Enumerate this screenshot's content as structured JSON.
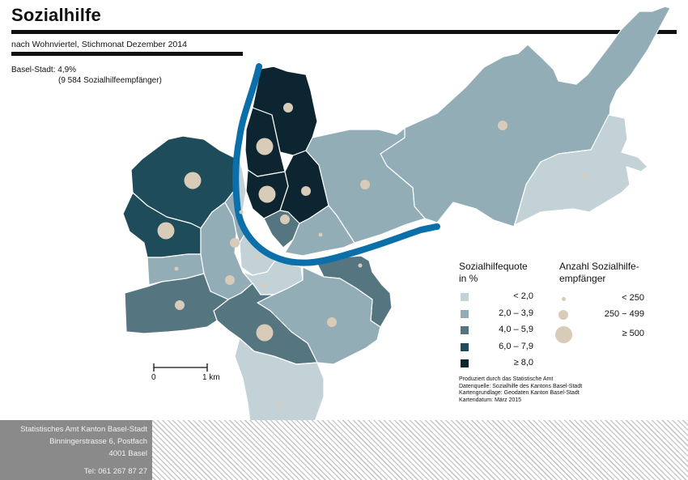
{
  "title": "Sozialhilfe",
  "subtitle": "nach Wohnviertel, Stichmonat Dezember 2014",
  "summary": {
    "line1": "Basel-Stadt: 4,9%",
    "line2": "(9 584 Sozialhilfeempfänger)"
  },
  "legend_quote": {
    "title_line1": "Sozialhilfequote",
    "title_line2": "in %",
    "classes": [
      {
        "label": "< 2,0",
        "color": "#c3d2d7"
      },
      {
        "label": "2,0 – 3,9",
        "color": "#93adb7"
      },
      {
        "label": "4,0 – 5,9",
        "color": "#557580"
      },
      {
        "label": "6,0 – 7,9",
        "color": "#1f4c5b"
      },
      {
        "label": "≥ 8,0",
        "color": "#0c2530"
      }
    ]
  },
  "legend_count": {
    "title_line1": "Anzahl Sozialhilfe-",
    "title_line2": "empfänger",
    "classes": [
      {
        "label": "< 250",
        "size": "small"
      },
      {
        "label": "250 − 499",
        "size": "medium"
      },
      {
        "label": "≥ 500",
        "size": "large"
      }
    ],
    "dot_color": "#d8cbb8"
  },
  "scale": {
    "start": "0",
    "end": "1 km"
  },
  "credits": [
    "Produziert durch das Statistische Amt",
    "Datenquelle: Sozialhilfe des Kantons Basel-Stadt",
    "Kartengrundlage: Geodaten Kanton Basel-Stadt",
    "Kartendatum: März 2015"
  ],
  "footer": {
    "line1": "Statistisches Amt Kanton Basel-Stadt",
    "line2": "Binningerstrasse 6, Postfach",
    "line3": "4001 Basel",
    "phone": "Tel: 061 267 87 27"
  },
  "colors": {
    "river": "#0b6fa9",
    "border": "#ffffff"
  },
  "districts": [
    {
      "id": "riehen",
      "class": 1,
      "dot": "medium"
    },
    {
      "id": "bettingen",
      "class": 0,
      "dot": "small"
    },
    {
      "id": "klybeck",
      "class": 4,
      "dot": "medium"
    },
    {
      "id": "kleinhueningen",
      "class": 4,
      "dot": "large"
    },
    {
      "id": "rosental",
      "class": 4,
      "dot": "large"
    },
    {
      "id": "matthaeus",
      "class": 4,
      "dot": "medium"
    },
    {
      "id": "clara",
      "class": 2,
      "dot": "medium"
    },
    {
      "id": "wettstein",
      "class": 1,
      "dot": "small"
    },
    {
      "id": "hirzbrunnen",
      "class": 1,
      "dot": "medium"
    },
    {
      "id": "st-johann",
      "class": 3,
      "dot": "large"
    },
    {
      "id": "iselin",
      "class": 3,
      "dot": "large"
    },
    {
      "id": "gotthelf",
      "class": 1,
      "dot": "small"
    },
    {
      "id": "bachletten",
      "class": 1,
      "dot": "medium"
    },
    {
      "id": "am-ring",
      "class": 1,
      "dot": "medium"
    },
    {
      "id": "altstadt-gb",
      "class": 0,
      "dot": "small"
    },
    {
      "id": "vorstaedte",
      "class": 0,
      "dot": "small"
    },
    {
      "id": "altstadt-kb",
      "class": 2,
      "dot": "small"
    },
    {
      "id": "st-alban",
      "class": 1,
      "dot": "medium"
    },
    {
      "id": "gundeldingen",
      "class": 2,
      "dot": "large"
    },
    {
      "id": "breite",
      "class": 2,
      "dot": "medium"
    },
    {
      "id": "bruderholz",
      "class": 0,
      "dot": "small"
    },
    {
      "id": "neubad",
      "class": 0,
      "dot": "small"
    }
  ]
}
